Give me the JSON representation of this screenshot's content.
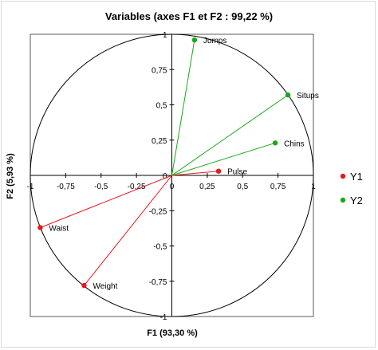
{
  "chart_data": {
    "type": "scatter",
    "title": "Variables (axes F1 et F2 : 99,22 %)",
    "xlabel": "F1 (93,30 %)",
    "ylabel": "F2 (5,93 %)",
    "xlim": [
      -1,
      1
    ],
    "ylim": [
      -1,
      1
    ],
    "x_ticks": [
      -1,
      -0.75,
      -0.5,
      -0.25,
      0,
      0.25,
      0.5,
      0.75,
      1
    ],
    "y_ticks": [
      -1,
      -0.75,
      -0.5,
      -0.25,
      0,
      0.25,
      0.5,
      0.75,
      1
    ],
    "x_tick_labels": [
      "-1",
      "-0,75",
      "-0,5",
      "-0,25",
      "0",
      "0,25",
      "0,5",
      "0,75",
      "1"
    ],
    "y_tick_labels": [
      "-1",
      "-0,75",
      "-0,5",
      "-0,25",
      "0",
      "0,25",
      "0,5",
      "0,75",
      "1"
    ],
    "unit_circle": true,
    "vectors_from_origin": true,
    "legend_position": "right",
    "series": [
      {
        "name": "Y1",
        "color": "#e8191d",
        "points": [
          {
            "label": "Pulse",
            "x": 0.33,
            "y": 0.03
          },
          {
            "label": "Waist",
            "x": -0.93,
            "y": -0.37
          },
          {
            "label": "Weight",
            "x": -0.62,
            "y": -0.78
          }
        ]
      },
      {
        "name": "Y2",
        "color": "#1aa81a",
        "points": [
          {
            "label": "Jumps",
            "x": 0.16,
            "y": 0.96
          },
          {
            "label": "Situps",
            "x": 0.82,
            "y": 0.57
          },
          {
            "label": "Chins",
            "x": 0.73,
            "y": 0.23
          }
        ]
      }
    ]
  }
}
